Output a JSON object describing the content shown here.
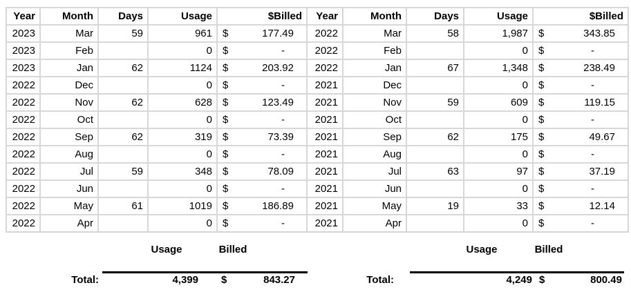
{
  "currency_symbol": "$",
  "dash_symbol": "-",
  "table": {
    "headers": [
      "Year",
      "Month",
      "Days",
      "Usage",
      "$Billed",
      "Year",
      "Month",
      "Days",
      "Usage",
      "$Billed"
    ],
    "rows": [
      [
        "2023",
        "Mar",
        "59",
        "961",
        "177.49",
        "2022",
        "Mar",
        "58",
        "1,987",
        "343.85"
      ],
      [
        "2023",
        "Feb",
        "",
        "0",
        "-",
        "2022",
        "Feb",
        "",
        "0",
        "-"
      ],
      [
        "2023",
        "Jan",
        "62",
        "1124",
        "203.92",
        "2022",
        "Jan",
        "67",
        "1,348",
        "238.49"
      ],
      [
        "2022",
        "Dec",
        "",
        "0",
        "-",
        "2021",
        "Dec",
        "",
        "0",
        "-"
      ],
      [
        "2022",
        "Nov",
        "62",
        "628",
        "123.49",
        "2021",
        "Nov",
        "59",
        "609",
        "119.15"
      ],
      [
        "2022",
        "Oct",
        "",
        "0",
        "-",
        "2021",
        "Oct",
        "",
        "0",
        "-"
      ],
      [
        "2022",
        "Sep",
        "62",
        "319",
        "73.39",
        "2021",
        "Sep",
        "62",
        "175",
        "49.67"
      ],
      [
        "2022",
        "Aug",
        "",
        "0",
        "-",
        "2021",
        "Aug",
        "",
        "0",
        "-"
      ],
      [
        "2022",
        "Jul",
        "59",
        "348",
        "78.09",
        "2021",
        "Jul",
        "63",
        "97",
        "37.19"
      ],
      [
        "2022",
        "Jun",
        "",
        "0",
        "-",
        "2021",
        "Jun",
        "",
        "0",
        "-"
      ],
      [
        "2022",
        "May",
        "61",
        "1019",
        "186.89",
        "2021",
        "May",
        "19",
        "33",
        "12.14"
      ],
      [
        "2022",
        "Apr",
        "",
        "0",
        "-",
        "2021",
        "Apr",
        "",
        "0",
        "-"
      ]
    ]
  },
  "summary": {
    "left": {
      "usage_label": "Usage",
      "billed_label": "Billed",
      "total_label": "Total:",
      "usage_total": "4,399",
      "billed_total": "843.27"
    },
    "right": {
      "usage_label": "Usage",
      "billed_label": "Billed",
      "total_label": "Total:",
      "usage_total": "4,249",
      "billed_total": "800.49"
    }
  },
  "chart_data": [
    {
      "type": "table",
      "title": "Usage and $Billed by month (left table)",
      "columns": [
        "Year",
        "Month",
        "Days",
        "Usage",
        "$Billed"
      ],
      "rows": [
        [
          2023,
          "Mar",
          59,
          961,
          177.49
        ],
        [
          2023,
          "Feb",
          null,
          0,
          null
        ],
        [
          2023,
          "Jan",
          62,
          1124,
          203.92
        ],
        [
          2022,
          "Dec",
          null,
          0,
          null
        ],
        [
          2022,
          "Nov",
          62,
          628,
          123.49
        ],
        [
          2022,
          "Oct",
          null,
          0,
          null
        ],
        [
          2022,
          "Sep",
          62,
          319,
          73.39
        ],
        [
          2022,
          "Aug",
          null,
          0,
          null
        ],
        [
          2022,
          "Jul",
          59,
          348,
          78.09
        ],
        [
          2022,
          "Jun",
          null,
          0,
          null
        ],
        [
          2022,
          "May",
          61,
          1019,
          186.89
        ],
        [
          2022,
          "Apr",
          null,
          0,
          null
        ]
      ],
      "total_usage": 4399,
      "total_billed": 843.27
    },
    {
      "type": "table",
      "title": "Usage and $Billed by month (right table)",
      "columns": [
        "Year",
        "Month",
        "Days",
        "Usage",
        "$Billed"
      ],
      "rows": [
        [
          2022,
          "Mar",
          58,
          1987,
          343.85
        ],
        [
          2022,
          "Feb",
          null,
          0,
          null
        ],
        [
          2022,
          "Jan",
          67,
          1348,
          238.49
        ],
        [
          2021,
          "Dec",
          null,
          0,
          null
        ],
        [
          2021,
          "Nov",
          59,
          609,
          119.15
        ],
        [
          2021,
          "Oct",
          null,
          0,
          null
        ],
        [
          2021,
          "Sep",
          62,
          175,
          49.67
        ],
        [
          2021,
          "Aug",
          null,
          0,
          null
        ],
        [
          2021,
          "Jul",
          63,
          97,
          37.19
        ],
        [
          2021,
          "Jun",
          null,
          0,
          null
        ],
        [
          2021,
          "May",
          19,
          33,
          12.14
        ],
        [
          2021,
          "Apr",
          null,
          0,
          null
        ]
      ],
      "total_usage": 4249,
      "total_billed": 800.49
    }
  ]
}
